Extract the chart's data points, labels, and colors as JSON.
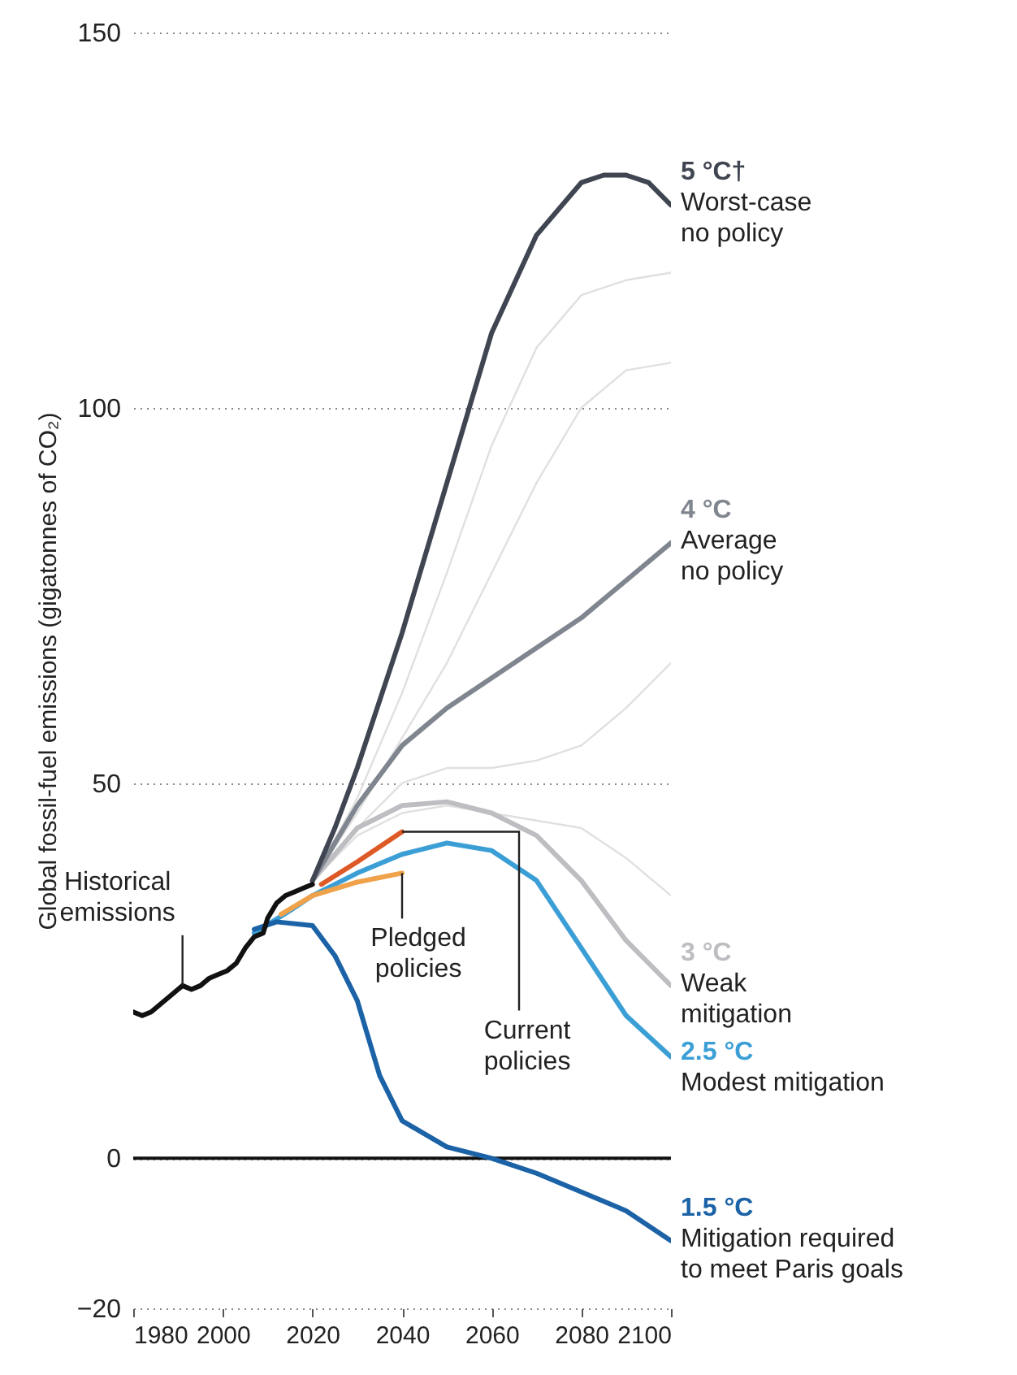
{
  "chart_data": {
    "type": "line",
    "ylabel": "Global fossil-fuel emissions (gigatonnes of CO₂)",
    "xlim": [
      1980,
      2100
    ],
    "xticks": [
      1980,
      2000,
      2020,
      2040,
      2060,
      2080,
      2100
    ],
    "ylim": [
      -20,
      150
    ],
    "yticks": [
      -20,
      0,
      50,
      100,
      150
    ],
    "grid": "y",
    "ref_lines": [
      {
        "axis": "y",
        "value": 0,
        "color": "#111111"
      }
    ],
    "series": [
      {
        "color": "#e0e0e0",
        "x": [
          2020,
          2030,
          2040,
          2050,
          2060,
          2070,
          2080,
          2090,
          2100
        ],
        "values": [
          37,
          48,
          62,
          78,
          95,
          108,
          115,
          117,
          118
        ]
      },
      {
        "color": "#e0e0e0",
        "x": [
          2020,
          2030,
          2040,
          2050,
          2060,
          2070,
          2080,
          2090,
          2100
        ],
        "values": [
          37,
          46,
          56,
          66,
          78,
          90,
          100,
          105,
          106
        ]
      },
      {
        "color": "#e0e0e0",
        "x": [
          2020,
          2030,
          2040,
          2050,
          2060,
          2070,
          2080,
          2090,
          2100
        ],
        "values": [
          37,
          44,
          50,
          52,
          52,
          53,
          55,
          60,
          66
        ]
      },
      {
        "color": "#e0e0e0",
        "x": [
          2020,
          2030,
          2040,
          2050,
          2060,
          2070,
          2080,
          2090,
          2100
        ],
        "values": [
          37,
          43,
          46,
          47,
          46,
          45,
          44,
          40,
          35
        ]
      },
      {
        "name": "3 °C",
        "color": "#bdbdc2",
        "x": [
          2020,
          2030,
          2040,
          2050,
          2060,
          2070,
          2080,
          2090,
          2100
        ],
        "values": [
          37,
          44,
          47,
          47.5,
          46,
          43,
          37,
          29,
          23
        ]
      },
      {
        "name": "4 °C",
        "color": "#80868f",
        "x": [
          2020,
          2030,
          2040,
          2050,
          2060,
          2070,
          2080,
          2090,
          2100
        ],
        "values": [
          37,
          47,
          55,
          60,
          64,
          68,
          72,
          77,
          82
        ]
      },
      {
        "name": "5 °C†",
        "color": "#404552",
        "x": [
          2020,
          2025,
          2030,
          2040,
          2050,
          2060,
          2070,
          2080,
          2085,
          2090,
          2095,
          2100
        ],
        "values": [
          37,
          44,
          52,
          70,
          90,
          110,
          123,
          130,
          131,
          131,
          130,
          127
        ]
      },
      {
        "name": "2.5 °C",
        "color": "#3b9fd6",
        "x": [
          2007,
          2015,
          2020,
          2030,
          2040,
          2050,
          2060,
          2070,
          2080,
          2090,
          2100
        ],
        "values": [
          30,
          33,
          35,
          38,
          40.5,
          42,
          41,
          37,
          28,
          19,
          13.5
        ]
      },
      {
        "name": "1.5 °C",
        "color": "#1b62a6",
        "x": [
          2007,
          2012,
          2020,
          2025,
          2030,
          2035,
          2040,
          2050,
          2060,
          2070,
          2080,
          2090,
          2100
        ],
        "values": [
          30.5,
          31.5,
          31,
          27,
          21,
          11,
          5,
          1.5,
          0,
          -2,
          -4.5,
          -7,
          -11
        ]
      },
      {
        "name": "Pledged\npolicies",
        "color": "#f0a24a",
        "x": [
          2013,
          2020,
          2030,
          2040
        ],
        "values": [
          32.5,
          35,
          36.8,
          38
        ]
      },
      {
        "name": "Current\npolicies",
        "color": "#dd5a26",
        "x": [
          2022,
          2030,
          2040
        ],
        "values": [
          36.5,
          39.5,
          43.5
        ]
      },
      {
        "name": "Historical\nemissions",
        "color": "#111111",
        "x": [
          1980,
          1982,
          1984,
          1986,
          1988,
          1990,
          1991,
          1993,
          1995,
          1997,
          1999,
          2001,
          2003,
          2005,
          2007,
          2009,
          2010,
          2012,
          2014,
          2016,
          2018,
          2020
        ],
        "values": [
          19.5,
          19,
          19.5,
          20.5,
          21.5,
          22.5,
          23,
          22.5,
          23,
          24,
          24.5,
          25,
          26,
          28,
          29.5,
          30,
          32,
          34,
          35,
          35.5,
          36,
          36.5
        ]
      }
    ],
    "annotations": [
      "Weak\nmitigation",
      "Average\nno policy",
      "Worst-case\nno policy",
      "Modest mitigation",
      "Mitigation required\nto meet Paris goals"
    ]
  }
}
